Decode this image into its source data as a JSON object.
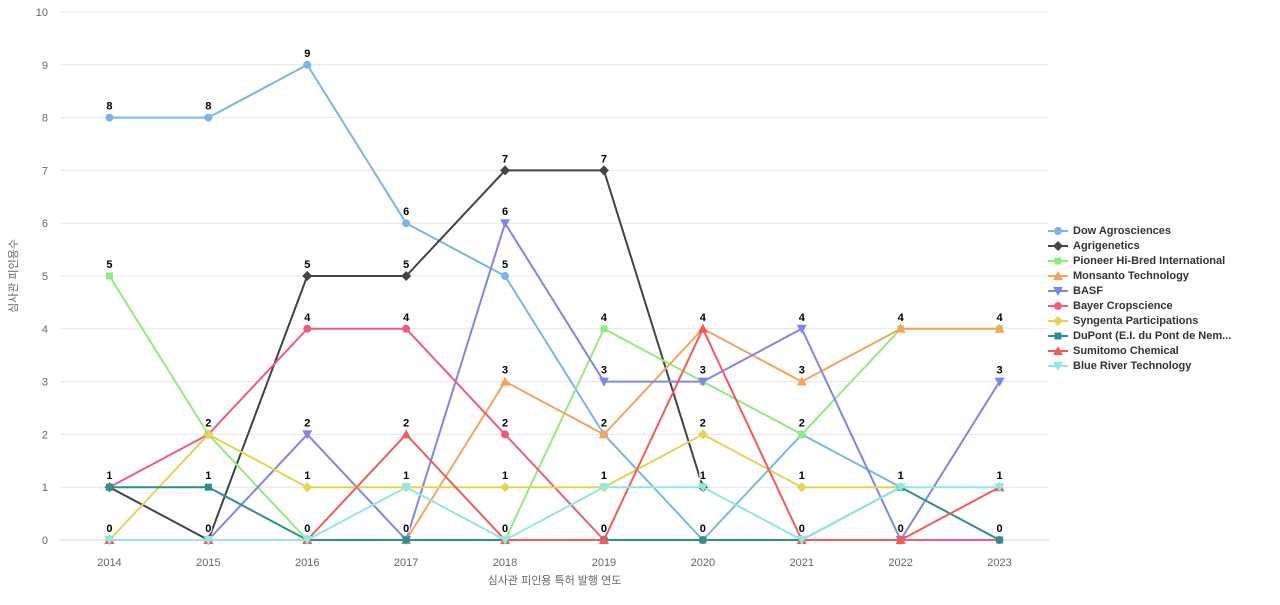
{
  "chart_data": {
    "type": "line",
    "title": "",
    "xlabel": "심사관 피인용 특허 발행 연도",
    "ylabel": "심사관 피인용수",
    "ylim": [
      0,
      10
    ],
    "ytick_step": 1,
    "grid": true,
    "legend_position": "right",
    "categories": [
      "2014",
      "2015",
      "2016",
      "2017",
      "2018",
      "2019",
      "2020",
      "2021",
      "2022",
      "2023"
    ],
    "series": [
      {
        "name": "Dow Agrosciences",
        "color": "#7cb5ec",
        "marker": "circle",
        "values": [
          8,
          8,
          9,
          6,
          5,
          2,
          0,
          2,
          1,
          null
        ]
      },
      {
        "name": "Agrigenetics",
        "color": "#434348",
        "marker": "diamond",
        "values": [
          1,
          0,
          5,
          5,
          7,
          7,
          1,
          null,
          null,
          null
        ]
      },
      {
        "name": "Pioneer Hi-Bred International",
        "color": "#90ed7d",
        "marker": "square",
        "values": [
          5,
          2,
          0,
          0,
          0,
          4,
          3,
          2,
          4,
          4
        ]
      },
      {
        "name": "Monsanto Technology",
        "color": "#f7a35c",
        "marker": "triangle",
        "values": [
          0,
          0,
          0,
          0,
          3,
          2,
          4,
          3,
          4,
          4
        ]
      },
      {
        "name": "BASF",
        "color": "#8085e9",
        "marker": "triangle-down",
        "values": [
          0,
          0,
          2,
          0,
          6,
          3,
          3,
          4,
          0,
          3
        ]
      },
      {
        "name": "Bayer Cropscience",
        "color": "#f15c80",
        "marker": "circle",
        "values": [
          1,
          2,
          4,
          4,
          2,
          0,
          0,
          0,
          0,
          0
        ]
      },
      {
        "name": "Syngenta Participations",
        "color": "#e4d354",
        "marker": "diamond",
        "values": [
          0,
          2,
          1,
          1,
          1,
          1,
          2,
          1,
          1,
          null
        ]
      },
      {
        "name": "DuPont (E.I. du Pont de Nem...",
        "color": "#2b908f",
        "marker": "square",
        "values": [
          1,
          1,
          0,
          0,
          0,
          0,
          0,
          0,
          1,
          0
        ]
      },
      {
        "name": "Sumitomo Chemical",
        "color": "#f45b5b",
        "marker": "triangle",
        "values": [
          0,
          0,
          0,
          2,
          0,
          0,
          4,
          0,
          0,
          1
        ]
      },
      {
        "name": "Blue River Technology",
        "color": "#91e8e1",
        "marker": "triangle-down",
        "values": [
          0,
          0,
          0,
          1,
          0,
          1,
          1,
          0,
          1,
          1
        ]
      }
    ],
    "colors": {
      "background": "#ffffff",
      "gridline": "#e6e6e6",
      "axis_line": "#ccd6eb",
      "tick_label": "#666666",
      "axis_title": "#666666",
      "legend_text": "#333333",
      "data_label": "#000000"
    }
  }
}
